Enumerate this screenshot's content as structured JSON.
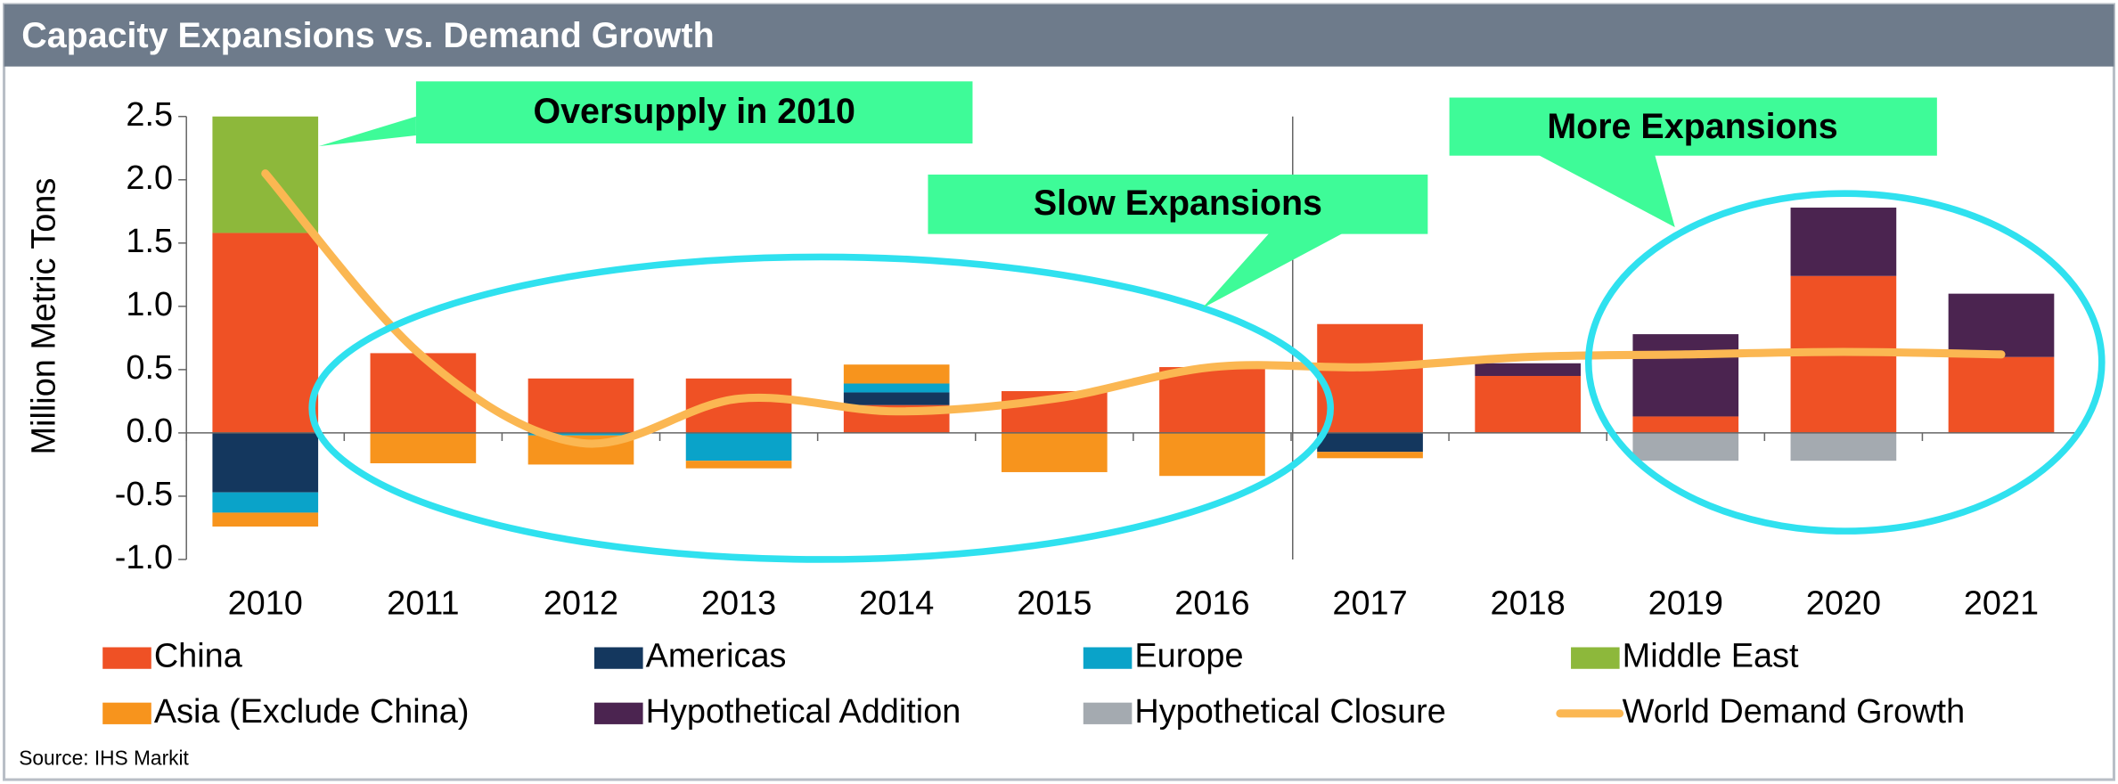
{
  "chart_data": {
    "type": "bar",
    "stacked": true,
    "title": "Capacity Expansions vs. Demand Growth",
    "ylabel": "Million Metric Tons",
    "source": "Source: IHS Markit",
    "categories": [
      "2010",
      "2011",
      "2012",
      "2013",
      "2014",
      "2015",
      "2016",
      "2017",
      "2018",
      "2019",
      "2020",
      "2021"
    ],
    "ylim": [
      -1.0,
      2.5
    ],
    "yticks": [
      2.5,
      {
        "value": 2.0,
        "label": "2.0"
      },
      1.5,
      {
        "value": 1.0,
        "label": "1.0"
      },
      0.5,
      {
        "value": 0.0,
        "label": "0.0"
      },
      -0.5,
      {
        "value": -1.0,
        "label": "-1.0"
      }
    ],
    "series": [
      {
        "name": "China",
        "color": "#ef5125",
        "values": [
          1.58,
          0.63,
          0.43,
          0.43,
          0.22,
          0.33,
          0.52,
          0.86,
          0.45,
          0.13,
          1.24,
          0.6
        ]
      },
      {
        "name": "Americas",
        "color": "#14375e",
        "values": [
          -0.47,
          0,
          0,
          0,
          0.1,
          0,
          0,
          -0.15,
          0,
          0,
          0,
          0
        ]
      },
      {
        "name": "Europe",
        "color": "#0aa3c9",
        "values": [
          -0.16,
          0,
          -0.02,
          -0.22,
          0.07,
          0,
          0,
          0,
          0,
          0,
          0,
          0
        ]
      },
      {
        "name": "Middle East",
        "color": "#8db83b",
        "values": [
          0.92,
          0,
          0,
          0,
          0,
          0,
          0,
          0,
          0,
          0,
          0,
          0
        ]
      },
      {
        "name": "Asia (Exclude China)",
        "color": "#f7941d",
        "values": [
          -0.11,
          -0.24,
          -0.23,
          -0.06,
          0.15,
          -0.31,
          -0.34,
          -0.05,
          0,
          0,
          0,
          0
        ]
      },
      {
        "name": "Hypothetical Addition",
        "color": "#4b2450",
        "values": [
          0,
          0,
          0,
          0,
          0,
          0,
          0,
          0,
          0.1,
          0.65,
          0.54,
          0.5
        ]
      },
      {
        "name": "Hypothetical Closure",
        "color": "#a4aab0",
        "values": [
          0,
          0,
          0,
          0,
          0,
          0,
          0,
          0,
          0,
          -0.22,
          -0.22,
          0
        ]
      },
      {
        "name": "World Demand Growth",
        "type": "line",
        "color": "#fbb752",
        "values": [
          2.05,
          0.6,
          -0.08,
          0.27,
          0.17,
          0.27,
          0.52,
          0.52,
          0.6,
          0.62,
          0.64,
          0.62
        ]
      }
    ],
    "annotations": [
      "Oversupply in 2010",
      "Slow Expansions",
      "More Expansions"
    ]
  }
}
